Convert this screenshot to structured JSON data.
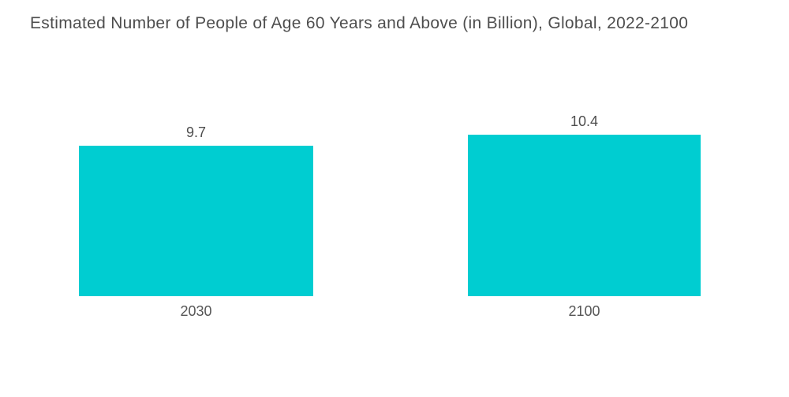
{
  "title": "Estimated Number of People of Age 60 Years and Above (in Billion), Global, 2022-2100",
  "colors": {
    "bar": "#00CDD1",
    "title_text": "#4E4E4E",
    "label_text": "#565656",
    "background": "#FFFFFF"
  },
  "chart_data": {
    "type": "bar",
    "title": "Estimated Number of People of Age 60 Years and Above (in Billion), Global, 2022-2100",
    "categories": [
      "2030",
      "2100"
    ],
    "values": [
      9.7,
      10.4
    ],
    "value_labels": [
      "9.7",
      "10.4"
    ],
    "xlabel": "",
    "ylabel": "",
    "ylim": [
      0,
      10.4
    ],
    "grid": false,
    "legend": false,
    "axes_visible": false,
    "bar_color": "#00CDD1"
  }
}
